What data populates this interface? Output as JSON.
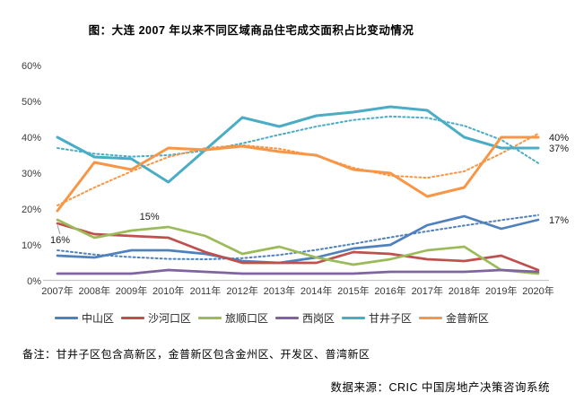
{
  "title": "图：大连 2007 年以来不同区域商品住宅成交面积占比变动情况",
  "note": "备注：甘井子区包含高新区，金普新区包含金州区、开发区、普湾新区",
  "source": "数据来源：CRIC 中国房地产决策咨询系统",
  "chart_data": {
    "type": "line",
    "categories": [
      "2007年",
      "2008年",
      "2009年",
      "2010年",
      "2011年",
      "2012年",
      "2013年",
      "2014年",
      "2015年",
      "2016年",
      "2017年",
      "2018年",
      "2019年",
      "2020年"
    ],
    "series": [
      {
        "name": "中山区",
        "color": "#4F81BD",
        "values": [
          7,
          6.5,
          8.5,
          8.5,
          7.5,
          5.5,
          5,
          6.5,
          9,
          10,
          15.5,
          18,
          14.5,
          17
        ]
      },
      {
        "name": "沙河口区",
        "color": "#C0504D",
        "values": [
          16,
          13,
          12.5,
          12,
          8,
          5,
          5,
          5,
          8,
          7.5,
          6,
          5.5,
          7,
          3
        ]
      },
      {
        "name": "旅顺口区",
        "color": "#9BBB59",
        "values": [
          17,
          12,
          14,
          15,
          12.5,
          7.5,
          9.5,
          6.5,
          4.5,
          6,
          8.5,
          9.5,
          3,
          2
        ]
      },
      {
        "name": "西岗区",
        "color": "#8064A2",
        "values": [
          2,
          2,
          2,
          3,
          2.5,
          2,
          2,
          2,
          2,
          2.5,
          2.5,
          2.5,
          3,
          2.5
        ]
      },
      {
        "name": "甘井子区",
        "color": "#4BACC6",
        "values": [
          40,
          34.5,
          34,
          27.5,
          36.5,
          45.5,
          43,
          46,
          47,
          48.5,
          47.5,
          40,
          37,
          37
        ]
      },
      {
        "name": "金普新区",
        "color": "#F79646",
        "values": [
          19.5,
          33,
          31,
          37,
          36.5,
          37.5,
          36,
          35,
          31,
          30,
          23.5,
          26,
          40,
          40
        ]
      }
    ],
    "trendlines": [
      {
        "for": "中山区",
        "color": "#4F81BD",
        "style": "dotted",
        "values": [
          8.5,
          7.3,
          6.6,
          6.1,
          6,
          6.3,
          7.2,
          8.6,
          10.3,
          12.1,
          13.8,
          15.4,
          16.9,
          18.3
        ]
      },
      {
        "for": "甘井子区",
        "color": "#4BACC6",
        "style": "dotted",
        "values": [
          37,
          35.4,
          34.6,
          35,
          36.3,
          38.3,
          40.7,
          43,
          44.8,
          45.8,
          45.4,
          43.2,
          39.3,
          32.8
        ]
      },
      {
        "for": "金普新区",
        "color": "#F79646",
        "style": "dotted",
        "values": [
          21,
          26,
          30.5,
          34.5,
          37,
          37.8,
          36.8,
          34.8,
          31.5,
          29.3,
          28.7,
          30.5,
          35.5,
          41
        ]
      }
    ],
    "annotations": [
      {
        "text": "16%",
        "series": "沙河口区",
        "point": 0,
        "placement": "below",
        "leader": true
      },
      {
        "text": "15%",
        "series": "旅顺口区",
        "point": 3,
        "placement": "above"
      },
      {
        "text": "40%",
        "series": "金普新区",
        "point": 13,
        "placement": "right"
      },
      {
        "text": "37%",
        "series": "甘井子区",
        "point": 13,
        "placement": "right"
      },
      {
        "text": "17%",
        "series": "中山区",
        "point": 13,
        "placement": "right"
      }
    ],
    "ylim": [
      0,
      60
    ],
    "yticks": [
      "0%",
      "10%",
      "20%",
      "30%",
      "40%",
      "50%",
      "60%"
    ],
    "xlabel": "",
    "ylabel": "",
    "grid": false,
    "legend_position": "bottom",
    "axis_color": "#c8c8c8",
    "tick_text_color": "#3a3a3a"
  }
}
